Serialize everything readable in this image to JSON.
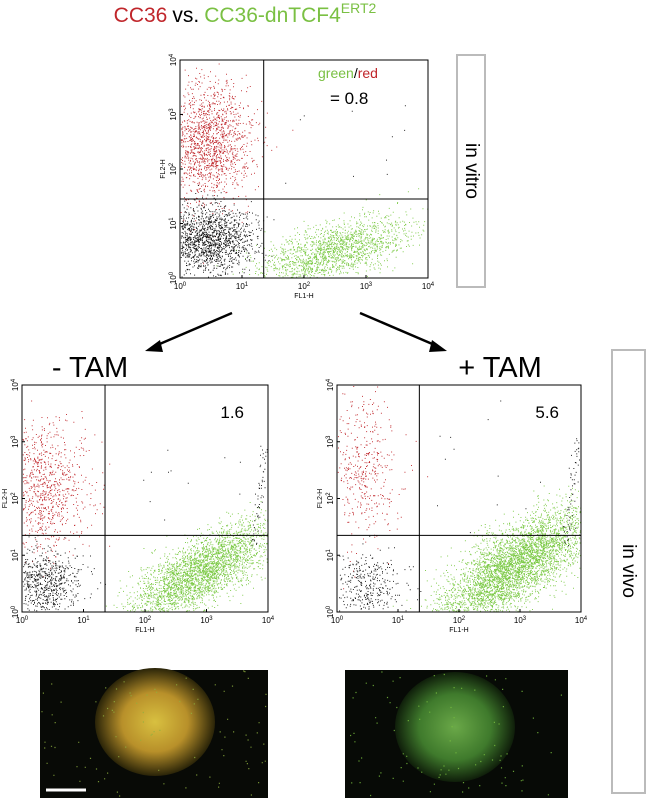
{
  "title": {
    "control": "CC36",
    "versus": "vs.",
    "construct": "CC36-dnTCF4",
    "superscript": "ERT2"
  },
  "axis": {
    "x_label": "FL1-H",
    "y_label": "FL2-H",
    "tick_base": "10",
    "tick_exponents": [
      "0",
      "1",
      "2",
      "3",
      "4"
    ]
  },
  "top_plot": {
    "ratio_label": {
      "green": "green",
      "slash": "/",
      "red": "red"
    },
    "ratio_value": "= 0.8",
    "side_label": "in vitro"
  },
  "conditions": {
    "minus": "- TAM",
    "plus": "+ TAM"
  },
  "bottom_plots": [
    {
      "ratio_value": "1.6"
    },
    {
      "ratio_value": "5.6"
    }
  ],
  "side_label_bottom": "in vivo"
}
